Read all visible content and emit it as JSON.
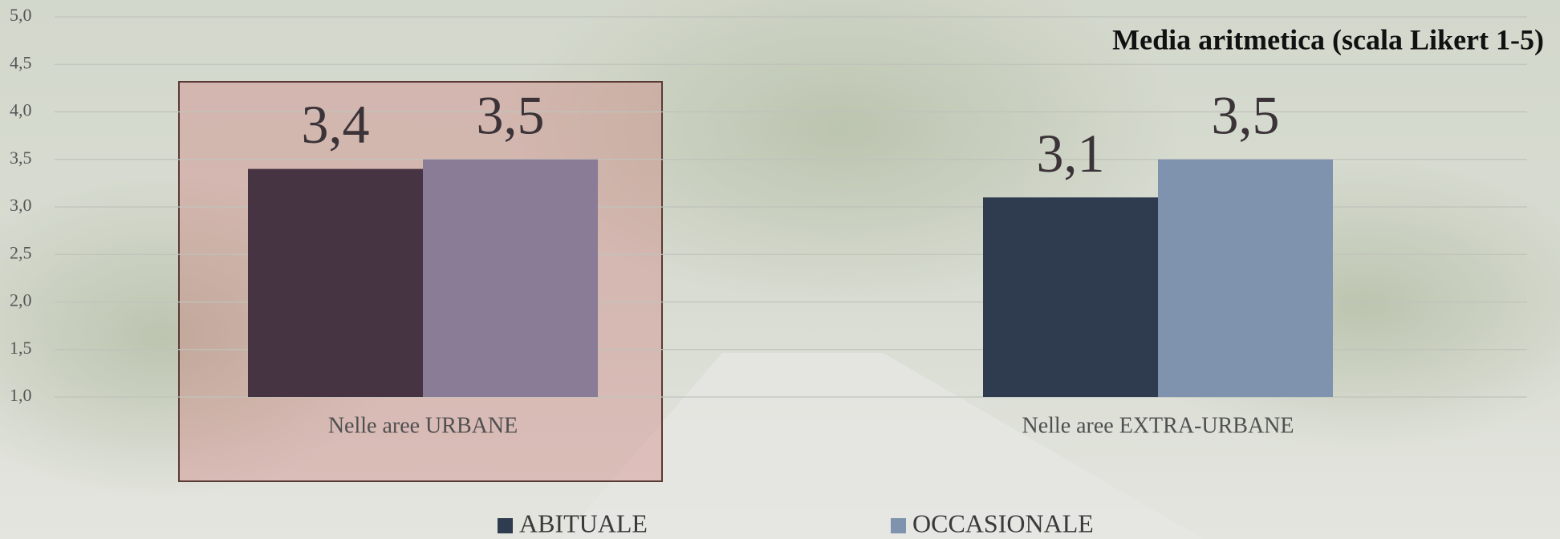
{
  "chart_data": {
    "type": "bar",
    "title": "Media aritmetica (scala Likert 1-5)",
    "categories": [
      "Nelle aree URBANE",
      "Nelle aree EXTRA-URBANE"
    ],
    "series": [
      {
        "name": "ABITUALE",
        "color": "#2f3b4f",
        "point_colors": [
          "#473443",
          "#2f3b4f"
        ],
        "values": [
          3.4,
          3.1
        ],
        "value_labels": [
          "3,4",
          "3,1"
        ]
      },
      {
        "name": "OCCASIONALE",
        "color": "#7f93ae",
        "point_colors": [
          "#8a7c96",
          "#7f93ae"
        ],
        "values": [
          3.5,
          3.5
        ],
        "value_labels": [
          "3,5",
          "3,5"
        ]
      }
    ],
    "ylim": [
      1,
      5
    ],
    "yticks": [
      {
        "value": 1,
        "label": "1,0"
      },
      {
        "value": 1.5,
        "label": "1,5"
      },
      {
        "value": 2,
        "label": "2,0"
      },
      {
        "value": 2.5,
        "label": "2,5"
      },
      {
        "value": 3,
        "label": "3,0"
      },
      {
        "value": 3.5,
        "label": "3,5"
      },
      {
        "value": 4,
        "label": "4,0"
      },
      {
        "value": 4.5,
        "label": "4,5"
      },
      {
        "value": 5,
        "label": "5,0"
      }
    ],
    "grid": true,
    "legend": "bottom"
  }
}
